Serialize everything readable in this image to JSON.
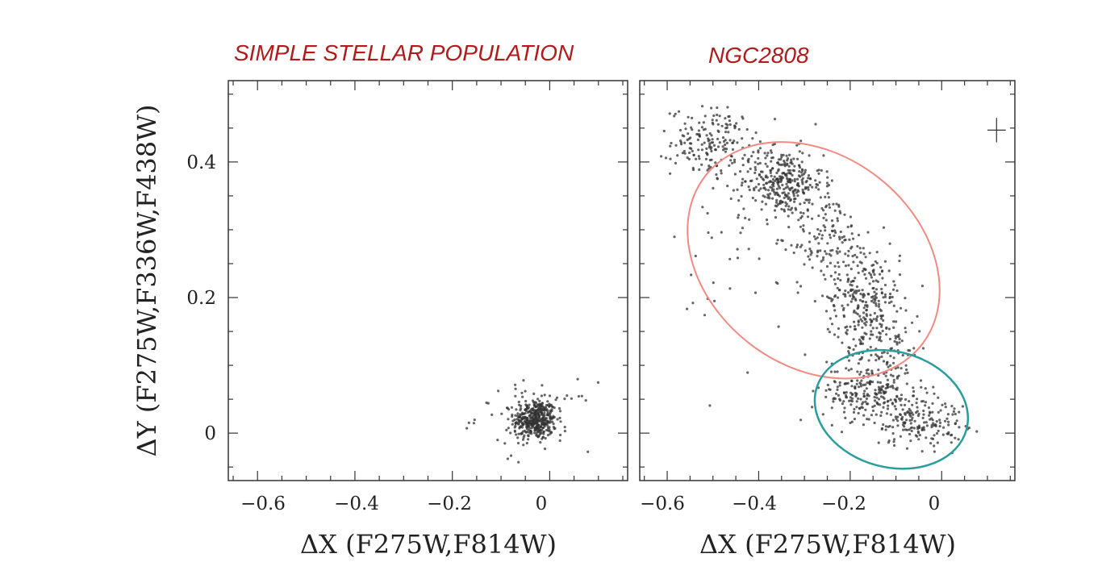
{
  "chart_data": [
    {
      "type": "scatter",
      "title": "SIMPLE STELLAR POPULATION",
      "xlabel": "ΔX (F275W,F814W)",
      "ylabel": "ΔY (F275W,F336W,F438W)",
      "xlim": [
        -0.66,
        0.16
      ],
      "ylim": [
        -0.07,
        0.52
      ],
      "xticks": [
        -0.6,
        -0.4,
        -0.2,
        0
      ],
      "xtick_labels": [
        "−0.6",
        "−0.4",
        "−0.2",
        "0"
      ],
      "yticks": [
        0,
        0.2,
        0.4
      ],
      "ytick_labels": [
        "0",
        "0.2",
        "0.4"
      ],
      "series": [
        {
          "clusters": [
            {
              "cx": -0.03,
              "cy": 0.02,
              "sx": 0.022,
              "sy": 0.015,
              "n": 420
            },
            {
              "cx": -0.03,
              "cy": 0.025,
              "sx": 0.06,
              "sy": 0.025,
              "n": 60
            }
          ]
        }
      ]
    },
    {
      "type": "scatter",
      "title": "NGC2808",
      "xlabel": "ΔX (F275W,F814W)",
      "xlim": [
        -0.66,
        0.16
      ],
      "ylim": [
        -0.07,
        0.52
      ],
      "xticks": [
        -0.6,
        -0.4,
        -0.2,
        0
      ],
      "xtick_labels": [
        "−0.6",
        "−0.4",
        "−0.2",
        "0"
      ],
      "yticks": [
        0,
        0.2,
        0.4
      ],
      "series": [
        {
          "clusters": [
            {
              "cx": -0.5,
              "cy": 0.43,
              "sx": 0.045,
              "sy": 0.025,
              "n": 180
            },
            {
              "cx": -0.35,
              "cy": 0.37,
              "sx": 0.045,
              "sy": 0.025,
              "n": 320
            },
            {
              "cx": -0.25,
              "cy": 0.29,
              "sx": 0.04,
              "sy": 0.035,
              "n": 120
            },
            {
              "cx": -0.17,
              "cy": 0.2,
              "sx": 0.04,
              "sy": 0.04,
              "n": 260
            },
            {
              "cx": -0.12,
              "cy": 0.13,
              "sx": 0.04,
              "sy": 0.03,
              "n": 90
            },
            {
              "cx": -0.16,
              "cy": 0.06,
              "sx": 0.05,
              "sy": 0.022,
              "n": 220
            },
            {
              "cx": -0.05,
              "cy": 0.02,
              "sx": 0.05,
              "sy": 0.02,
              "n": 180
            },
            {
              "cx": -0.4,
              "cy": 0.25,
              "sx": 0.09,
              "sy": 0.08,
              "n": 50
            }
          ]
        }
      ],
      "ellipses": [
        {
          "name": "upper",
          "cx": -0.28,
          "cy": 0.255,
          "rx": 0.3,
          "ry": 0.1,
          "angle_deg": -38,
          "color": "#f08a82"
        },
        {
          "name": "lower",
          "cx": -0.11,
          "cy": 0.035,
          "rx": 0.17,
          "ry": 0.055,
          "angle_deg": -15,
          "color": "#2a9d9d"
        }
      ],
      "error_bar": {
        "x": 0.12,
        "y": 0.447,
        "dx": 0.02,
        "dy": 0.018
      }
    }
  ],
  "colors": {
    "title": "#b01c1c",
    "points": "#333333",
    "frame": "#333333"
  }
}
